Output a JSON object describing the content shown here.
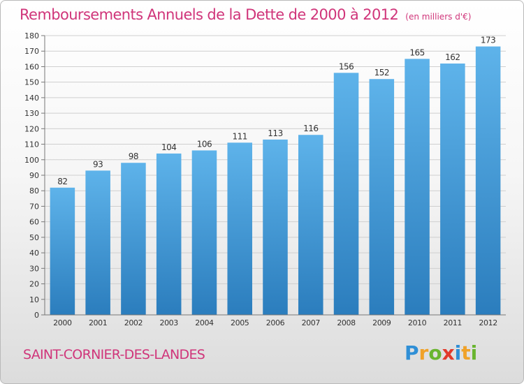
{
  "header": {
    "title": "Remboursements Annuels de la Dette de 2000 à 2012",
    "subtitle": "(en milliers d'€)"
  },
  "footer": {
    "commune": "SAINT-CORNIER-DES-LANDES",
    "logo_text": "Proxiti",
    "logo_letters": [
      {
        "char": "P",
        "color": "#2f8fd6"
      },
      {
        "char": "r",
        "color": "#f0a229"
      },
      {
        "char": "o",
        "color": "#69b52f"
      },
      {
        "char": "x",
        "color": "#e23a2b"
      },
      {
        "char": "i",
        "color": "#2f8fd6"
      },
      {
        "char": "t",
        "color": "#f0a229"
      },
      {
        "char": "i",
        "color": "#69b52f"
      }
    ]
  },
  "colors": {
    "bar_top": "#5eb3ea",
    "bar_bottom": "#2b7dbd",
    "grid": "#cfcfcf",
    "text": "#333333",
    "title": "#d0357a"
  },
  "chart_data": {
    "type": "bar",
    "categories": [
      "2000",
      "2001",
      "2002",
      "2003",
      "2004",
      "2005",
      "2006",
      "2007",
      "2008",
      "2009",
      "2010",
      "2011",
      "2012"
    ],
    "values": [
      82,
      93,
      98,
      104,
      106,
      111,
      113,
      116,
      156,
      152,
      165,
      162,
      173
    ],
    "ylim": [
      0,
      180
    ],
    "yticks": [
      0,
      10,
      20,
      30,
      40,
      50,
      60,
      70,
      80,
      90,
      100,
      110,
      120,
      130,
      140,
      150,
      160,
      170,
      180
    ],
    "grid": true,
    "data_labels": true
  }
}
